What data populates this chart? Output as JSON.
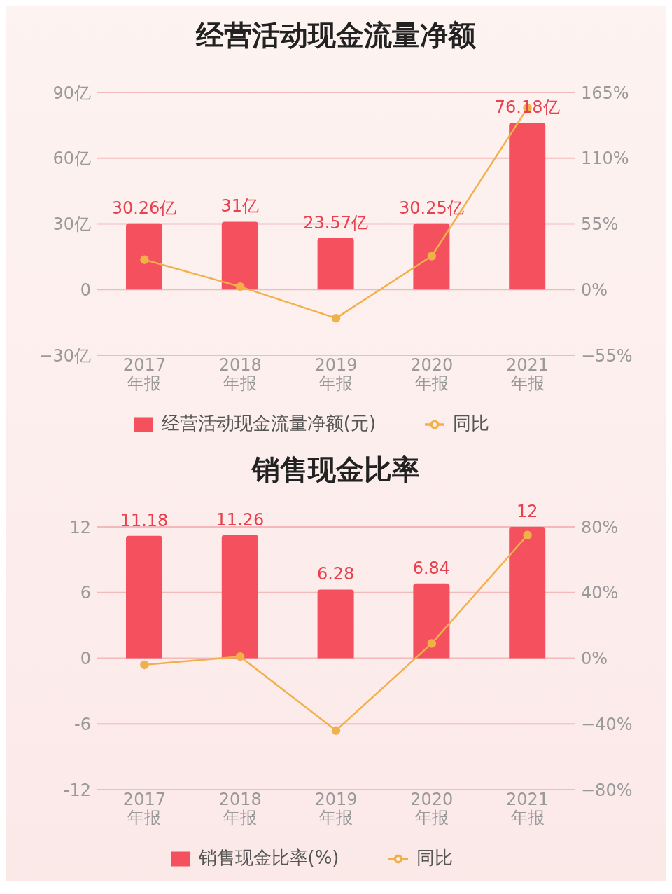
{
  "chart_data": [
    {
      "type": "bar",
      "title": "经营活动现金流量净额",
      "categories": [
        "2017\n年报",
        "2018\n年报",
        "2019\n年报",
        "2020\n年报",
        "2021\n年报"
      ],
      "series": [
        {
          "name": "经营活动现金流量净额(元)",
          "color": "#f4505e",
          "values": [
            30.26,
            31,
            23.57,
            30.25,
            76.18
          ],
          "value_labels": [
            "30.26亿",
            "31亿",
            "23.57亿",
            "30.25亿",
            "76.18亿"
          ]
        },
        {
          "name": "同比",
          "type": "line",
          "axis": "y2",
          "color": "#f2b04a",
          "values": [
            25,
            2.4,
            -24,
            28,
            152
          ]
        }
      ],
      "ylim": [
        -30,
        90
      ],
      "yticks": [
        {
          "value": -30,
          "label": "−30亿"
        },
        0,
        {
          "value": 30,
          "label": "30亿"
        },
        {
          "value": 60,
          "label": "60亿"
        },
        {
          "value": 90,
          "label": "90亿"
        }
      ],
      "y2lim": [
        -55,
        165
      ],
      "y2ticks": [
        {
          "value": -55,
          "label": "−55%"
        },
        {
          "value": 0,
          "label": "0%"
        },
        {
          "value": 55,
          "label": "55%"
        },
        {
          "value": 110,
          "label": "110%"
        },
        {
          "value": 165,
          "label": "165%"
        }
      ],
      "grid": "y",
      "legend": "bottom",
      "marker": "circle"
    },
    {
      "type": "bar",
      "title": "销售现金比率",
      "categories": [
        "2017\n年报",
        "2018\n年报",
        "2019\n年报",
        "2020\n年报",
        "2021\n年报"
      ],
      "series": [
        {
          "name": "销售现金比率(%)",
          "color": "#f4505e",
          "values": [
            11.18,
            11.26,
            6.28,
            6.84,
            12
          ],
          "value_labels": [
            "11.18",
            "11.26",
            "6.28",
            "6.84",
            "12"
          ]
        },
        {
          "name": "同比",
          "type": "line",
          "axis": "y2",
          "color": "#f2b04a",
          "values": [
            -4,
            1,
            -44,
            9,
            75
          ]
        }
      ],
      "ylim": [
        -12,
        12
      ],
      "yticks": [
        -12,
        -6,
        0,
        6,
        12
      ],
      "y2lim": [
        -80,
        80
      ],
      "y2ticks": [
        {
          "value": -80,
          "label": "−80%"
        },
        {
          "value": -40,
          "label": "−40%"
        },
        {
          "value": 0,
          "label": "0%"
        },
        {
          "value": 40,
          "label": "40%"
        },
        {
          "value": 80,
          "label": "80%"
        }
      ],
      "grid": "y",
      "legend": "bottom",
      "marker": "circle"
    }
  ]
}
